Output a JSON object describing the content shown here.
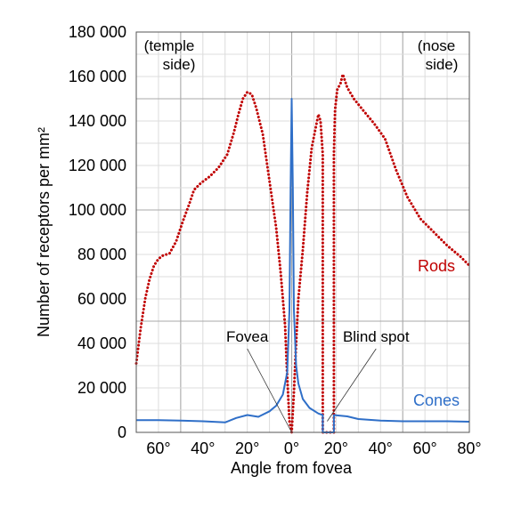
{
  "chart_data": {
    "type": "line",
    "title": "",
    "xlabel": "Angle from fovea",
    "ylabel": "Number of receptors per mm²",
    "xlim": [
      -70,
      80
    ],
    "ylim": [
      0,
      180000
    ],
    "grid": true,
    "x_ticks": [
      {
        "value": -60,
        "label": "60°"
      },
      {
        "value": -40,
        "label": "40°"
      },
      {
        "value": -20,
        "label": "20°"
      },
      {
        "value": 0,
        "label": "0°"
      },
      {
        "value": 20,
        "label": "20°"
      },
      {
        "value": 40,
        "label": "40°"
      },
      {
        "value": 60,
        "label": "60°"
      },
      {
        "value": 80,
        "label": "80°"
      }
    ],
    "y_ticks": [
      {
        "value": 0,
        "label": "0"
      },
      {
        "value": 20000,
        "label": "20 000"
      },
      {
        "value": 40000,
        "label": "40 000"
      },
      {
        "value": 60000,
        "label": "60 000"
      },
      {
        "value": 80000,
        "label": "80 000"
      },
      {
        "value": 100000,
        "label": "100 000"
      },
      {
        "value": 120000,
        "label": "120 000"
      },
      {
        "value": 140000,
        "label": "140 000"
      },
      {
        "value": 160000,
        "label": "160 000"
      },
      {
        "value": 180000,
        "label": "180 000"
      }
    ],
    "corner_labels": {
      "left": [
        "(temple",
        "side)"
      ],
      "right": [
        "(nose",
        "side)"
      ]
    },
    "series": [
      {
        "name": "Rods",
        "color": "#c00000",
        "style": "dotted",
        "points": [
          [
            -70,
            31000
          ],
          [
            -68,
            47000
          ],
          [
            -66,
            60000
          ],
          [
            -64,
            69000
          ],
          [
            -62,
            75000
          ],
          [
            -60,
            78000
          ],
          [
            -58,
            79500
          ],
          [
            -55,
            80500
          ],
          [
            -52,
            86000
          ],
          [
            -49,
            95000
          ],
          [
            -46,
            103000
          ],
          [
            -44,
            109000
          ],
          [
            -41,
            112000
          ],
          [
            -37,
            115000
          ],
          [
            -33,
            119000
          ],
          [
            -29,
            125000
          ],
          [
            -26,
            135000
          ],
          [
            -24,
            143000
          ],
          [
            -22,
            150000
          ],
          [
            -20,
            153000
          ],
          [
            -18,
            152000
          ],
          [
            -16,
            146000
          ],
          [
            -13,
            134000
          ],
          [
            -10,
            113000
          ],
          [
            -7,
            92000
          ],
          [
            -5,
            72000
          ],
          [
            -3,
            48000
          ],
          [
            -2,
            25000
          ],
          [
            -1,
            5000
          ],
          [
            0,
            0
          ],
          [
            1,
            18000
          ],
          [
            2,
            40000
          ],
          [
            3,
            60000
          ],
          [
            5,
            82000
          ],
          [
            7,
            108000
          ],
          [
            9,
            128000
          ],
          [
            11,
            138000
          ],
          [
            12,
            143000
          ],
          [
            13,
            140000
          ],
          [
            14,
            125000
          ],
          [
            14,
            0
          ],
          [
            19,
            0
          ],
          [
            19,
            125000
          ],
          [
            19.5,
            145000
          ],
          [
            20.5,
            154000
          ],
          [
            22,
            157000
          ],
          [
            23,
            161000
          ],
          [
            25,
            155000
          ],
          [
            28,
            150000
          ],
          [
            32,
            145000
          ],
          [
            37,
            139000
          ],
          [
            42,
            132000
          ],
          [
            47,
            118000
          ],
          [
            52,
            106000
          ],
          [
            58,
            96000
          ],
          [
            64,
            90000
          ],
          [
            70,
            84000
          ],
          [
            76,
            79000
          ],
          [
            80,
            75000
          ]
        ]
      },
      {
        "name": "Cones",
        "color": "#2f6fc8",
        "style": "solid",
        "points": [
          [
            -70,
            5500
          ],
          [
            -60,
            5500
          ],
          [
            -50,
            5300
          ],
          [
            -40,
            5000
          ],
          [
            -30,
            4500
          ],
          [
            -25,
            6500
          ],
          [
            -20,
            7800
          ],
          [
            -15,
            7000
          ],
          [
            -10,
            9500
          ],
          [
            -7,
            12000
          ],
          [
            -4,
            17000
          ],
          [
            -2,
            27000
          ],
          [
            -1,
            55000
          ],
          [
            -0.5,
            110000
          ],
          [
            0,
            150000
          ],
          [
            0.5,
            110000
          ],
          [
            1,
            55000
          ],
          [
            2,
            30000
          ],
          [
            3,
            22000
          ],
          [
            5,
            15000
          ],
          [
            8,
            11000
          ],
          [
            12,
            8500
          ],
          [
            14,
            7800
          ],
          [
            14,
            0
          ],
          [
            19,
            0
          ],
          [
            19,
            7800
          ],
          [
            25,
            7200
          ],
          [
            30,
            6000
          ],
          [
            40,
            5300
          ],
          [
            50,
            5000
          ],
          [
            60,
            5000
          ],
          [
            70,
            5000
          ],
          [
            80,
            4800
          ]
        ]
      }
    ],
    "annotations": [
      {
        "text": "Fovea",
        "target": [
          0,
          0
        ],
        "label_at": [
          -20,
          40000
        ]
      },
      {
        "text": "Blind spot",
        "target": [
          16,
          5000
        ],
        "label_at": [
          38,
          40000
        ]
      }
    ]
  }
}
